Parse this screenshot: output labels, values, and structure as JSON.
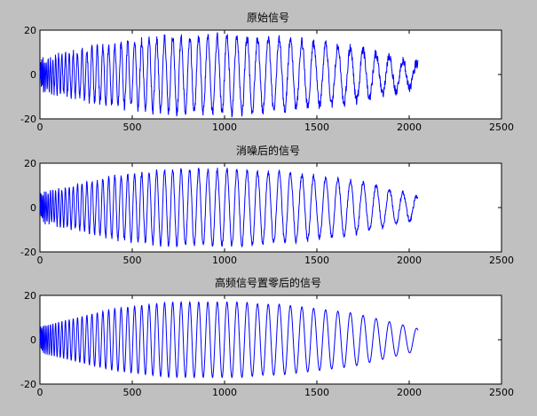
{
  "figure": {
    "background": "#c0c0c0",
    "axes_background": "#ffffff",
    "line_color": "#0000ff"
  },
  "chart_data": [
    {
      "type": "line",
      "title": "原始信号",
      "xlim": [
        0,
        2500
      ],
      "ylim": [
        -20,
        20
      ],
      "xticks": [
        0,
        500,
        1000,
        1500,
        2000,
        2500
      ],
      "yticks": [
        -20,
        0,
        20
      ],
      "grid": false,
      "noise": "high",
      "x": [
        0,
        100,
        200,
        300,
        400,
        500,
        600,
        700,
        800,
        900,
        1000,
        1100,
        1200,
        1300,
        1400,
        1500,
        1600,
        1700,
        1800,
        1900,
        2000,
        2048
      ],
      "envelope": [
        6,
        8,
        10,
        12,
        14,
        15,
        16,
        17,
        17,
        17,
        17,
        17,
        16,
        16,
        15,
        14,
        13,
        12,
        10,
        8,
        6,
        5
      ],
      "key_points": [
        {
          "x": 400,
          "y": 14
        },
        {
          "x": 560,
          "y": 16
        },
        {
          "x": 680,
          "y": -16
        },
        {
          "x": 860,
          "y": 18
        },
        {
          "x": 1120,
          "y": -17
        },
        {
          "x": 1600,
          "y": 15
        },
        {
          "x": 2048,
          "y": 0
        }
      ]
    },
    {
      "type": "line",
      "title": "消噪后的信号",
      "xlim": [
        0,
        2500
      ],
      "ylim": [
        -20,
        20
      ],
      "xticks": [
        0,
        500,
        1000,
        1500,
        2000,
        2500
      ],
      "yticks": [
        -20,
        0,
        20
      ],
      "grid": false,
      "noise": "medium",
      "x": [
        0,
        100,
        200,
        300,
        400,
        500,
        600,
        700,
        800,
        900,
        1000,
        1100,
        1200,
        1300,
        1400,
        1500,
        1600,
        1700,
        1800,
        1900,
        2000,
        2048
      ],
      "envelope": [
        6,
        8,
        10,
        12,
        14,
        15,
        16,
        17,
        17,
        17,
        17,
        17,
        16,
        16,
        15,
        14,
        13,
        12,
        10,
        8,
        6,
        5
      ],
      "key_points": [
        {
          "x": 400,
          "y": 14
        },
        {
          "x": 560,
          "y": 16
        },
        {
          "x": 680,
          "y": -16
        },
        {
          "x": 860,
          "y": 18
        },
        {
          "x": 1120,
          "y": -17
        },
        {
          "x": 1600,
          "y": 15
        },
        {
          "x": 2048,
          "y": 0
        }
      ]
    },
    {
      "type": "line",
      "title": "高频信号置零后的信号",
      "xlim": [
        0,
        2500
      ],
      "ylim": [
        -20,
        20
      ],
      "xticks": [
        0,
        500,
        1000,
        1500,
        2000,
        2500
      ],
      "yticks": [
        -20,
        0,
        20
      ],
      "grid": false,
      "noise": "none",
      "x": [
        0,
        100,
        200,
        300,
        400,
        500,
        600,
        700,
        800,
        900,
        1000,
        1100,
        1200,
        1300,
        1400,
        1500,
        1600,
        1700,
        1800,
        1900,
        2000,
        2048
      ],
      "envelope": [
        6,
        8,
        10,
        12,
        14,
        15,
        16,
        17,
        17,
        17,
        17,
        17,
        16,
        16,
        15,
        14,
        13,
        12,
        10,
        8,
        6,
        5
      ],
      "key_points": [
        {
          "x": 400,
          "y": 14
        },
        {
          "x": 560,
          "y": 16
        },
        {
          "x": 680,
          "y": -16
        },
        {
          "x": 860,
          "y": 18
        },
        {
          "x": 1120,
          "y": -17
        },
        {
          "x": 1600,
          "y": 15
        },
        {
          "x": 2048,
          "y": 0
        }
      ]
    }
  ]
}
